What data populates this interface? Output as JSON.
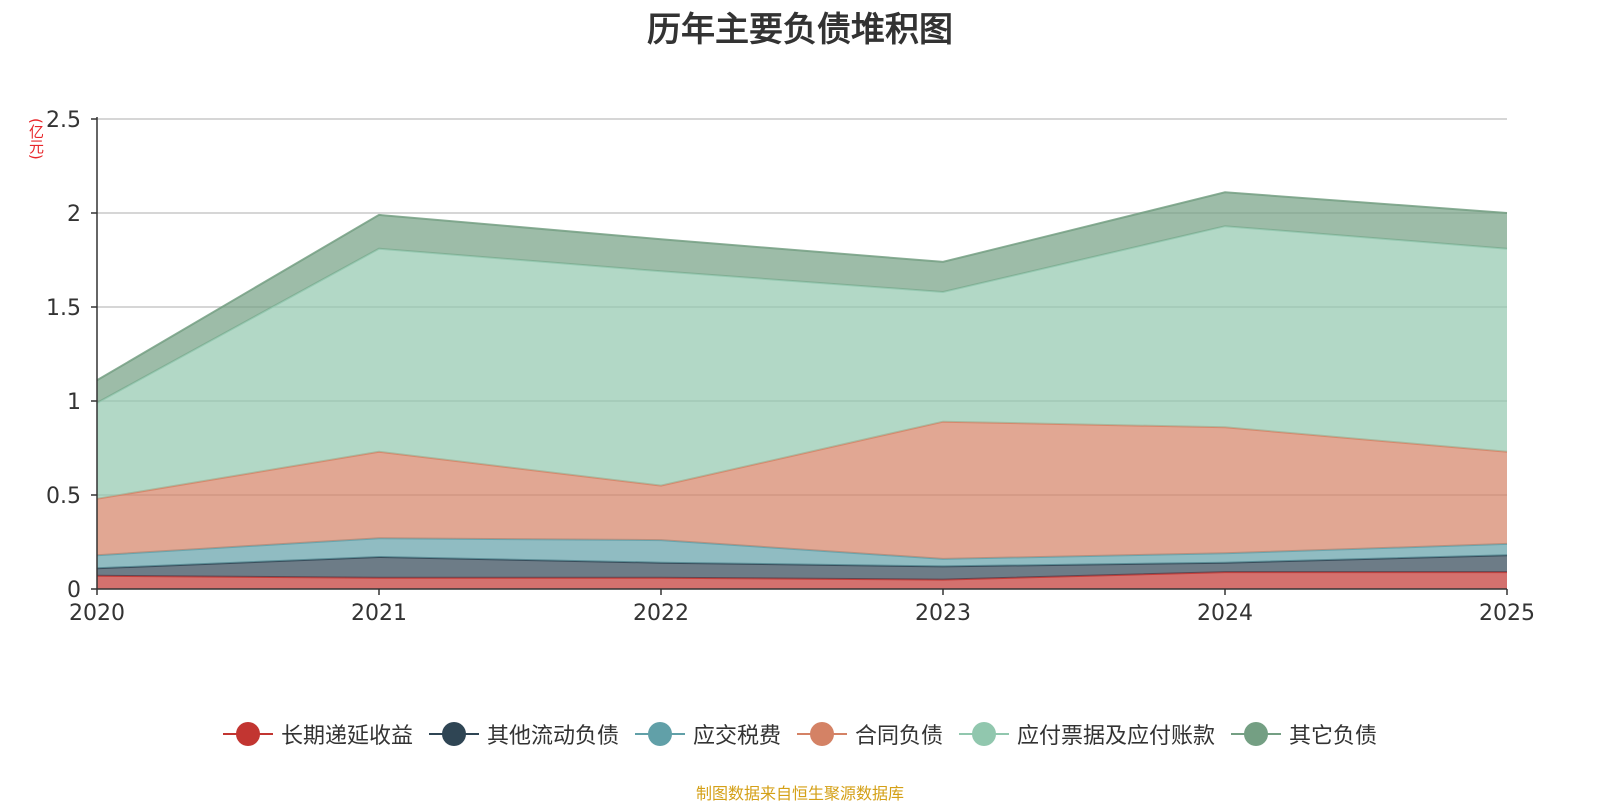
{
  "chart_data": {
    "type": "area",
    "stacked": true,
    "title": "历年主要负债堆积图",
    "ylabel": "(亿元)",
    "xlabel": "",
    "categories": [
      "2020",
      "2021",
      "2022",
      "2023",
      "2024",
      "2025"
    ],
    "ylim": [
      0,
      2.5
    ],
    "yticks": [
      0,
      0.5,
      1,
      1.5,
      2,
      2.5
    ],
    "ytick_labels": [
      "0",
      "0.5",
      "1",
      "1.5",
      "2",
      "2.5"
    ],
    "grid": true,
    "legend_position": "bottom",
    "series": [
      {
        "name": "长期递延收益",
        "color": "#c23531",
        "values": [
          0.07,
          0.06,
          0.06,
          0.05,
          0.09,
          0.09
        ]
      },
      {
        "name": "其他流动负债",
        "color": "#2f4554",
        "values": [
          0.04,
          0.11,
          0.08,
          0.07,
          0.05,
          0.09
        ]
      },
      {
        "name": "应交税费",
        "color": "#61a0a8",
        "values": [
          0.07,
          0.1,
          0.12,
          0.04,
          0.05,
          0.06
        ]
      },
      {
        "name": "合同负债",
        "color": "#d48265",
        "values": [
          0.3,
          0.46,
          0.29,
          0.73,
          0.67,
          0.49
        ]
      },
      {
        "name": "应付票据及应付账款",
        "color": "#91c7ae",
        "values": [
          0.51,
          1.08,
          1.14,
          0.69,
          1.07,
          1.08
        ]
      },
      {
        "name": "其它负债",
        "color": "#749f83",
        "values": [
          0.12,
          0.18,
          0.17,
          0.16,
          0.18,
          0.19
        ]
      }
    ]
  },
  "source_note": "制图数据来自恒生聚源数据库",
  "source_note_color": "#d4a017"
}
